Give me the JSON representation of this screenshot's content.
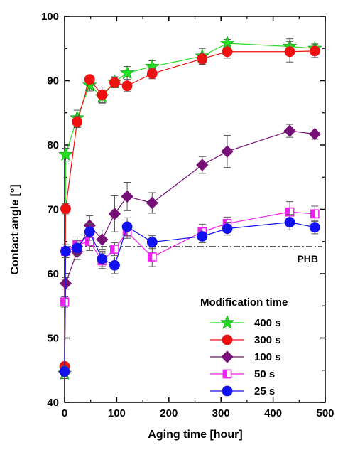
{
  "chart_data": {
    "type": "scatter",
    "xlabel": "Aging time [hour]",
    "ylabel": "Contact angle [°]",
    "xlim": [
      0,
      500
    ],
    "ylim": [
      40,
      100
    ],
    "xticks": [
      0,
      100,
      200,
      300,
      400,
      500
    ],
    "yticks": [
      40,
      50,
      60,
      70,
      80,
      90,
      100
    ],
    "x_tick_labels": [
      "0",
      "100",
      "200",
      "300",
      "400",
      "500"
    ],
    "y_tick_labels": [
      "40",
      "50",
      "60",
      "70",
      "80",
      "90",
      "100"
    ],
    "grid": false,
    "legend_position": "bottom-right",
    "legend_title": "Modification time",
    "reference_line": {
      "label": "PHB",
      "y": 64.2,
      "style": "dash-dot"
    },
    "series": [
      {
        "name": "400 s",
        "color": "#22dd22",
        "marker": "star",
        "points": [
          [
            0,
            44.5
          ],
          [
            2,
            78.5
          ],
          [
            24,
            84.2
          ],
          [
            48,
            89.3
          ],
          [
            72,
            87.5
          ],
          [
            96,
            89.8
          ],
          [
            120,
            91.2
          ],
          [
            168,
            92.2
          ],
          [
            264,
            93.8
          ],
          [
            312,
            95.8
          ],
          [
            432,
            95.3
          ],
          [
            480,
            95.0
          ]
        ],
        "errors": [
          0.8,
          1.0,
          1.2,
          0.9,
          1.0,
          0.8,
          1.0,
          0.9,
          1.2,
          0.6,
          1.2,
          0.8
        ]
      },
      {
        "name": "300 s",
        "color": "#ee1111",
        "marker": "circle",
        "points": [
          [
            0,
            45.6
          ],
          [
            2,
            70.1
          ],
          [
            24,
            83.6
          ],
          [
            48,
            90.2
          ],
          [
            72,
            87.8
          ],
          [
            96,
            89.7
          ],
          [
            120,
            89.2
          ],
          [
            168,
            91.1
          ],
          [
            264,
            93.4
          ],
          [
            312,
            94.5
          ],
          [
            432,
            94.5
          ],
          [
            480,
            94.6
          ]
        ],
        "errors": [
          0.6,
          0.8,
          0.9,
          0.6,
          1.2,
          0.8,
          0.9,
          0.8,
          0.9,
          1.0,
          1.6,
          1.0
        ]
      },
      {
        "name": "100 s",
        "color": "#771177",
        "marker": "diamond",
        "points": [
          [
            0,
            44.8
          ],
          [
            2,
            58.5
          ],
          [
            24,
            63.4
          ],
          [
            48,
            67.5
          ],
          [
            72,
            65.3
          ],
          [
            96,
            69.3
          ],
          [
            120,
            72.0
          ],
          [
            168,
            71.0
          ],
          [
            264,
            76.9
          ],
          [
            312,
            79.0
          ],
          [
            432,
            82.2
          ],
          [
            480,
            81.7
          ]
        ],
        "errors": [
          0.8,
          0.9,
          1.2,
          1.5,
          1.5,
          2.8,
          2.2,
          1.6,
          1.3,
          2.5,
          1.0,
          0.8
        ]
      },
      {
        "name": "50 s",
        "color": "#ee22ee",
        "marker": "square-open",
        "points": [
          [
            0,
            55.6
          ],
          [
            2,
            63.5
          ],
          [
            24,
            64.5
          ],
          [
            48,
            65.0
          ],
          [
            72,
            62.0
          ],
          [
            96,
            63.8
          ],
          [
            120,
            66.5
          ],
          [
            168,
            62.6
          ],
          [
            264,
            66.5
          ],
          [
            312,
            67.8
          ],
          [
            432,
            69.6
          ],
          [
            480,
            69.3
          ]
        ],
        "errors": [
          0.8,
          1.0,
          1.2,
          1.4,
          1.2,
          1.0,
          1.0,
          1.5,
          1.2,
          1.0,
          1.6,
          1.2
        ]
      },
      {
        "name": "25 s",
        "color": "#1111ee",
        "marker": "circle",
        "points": [
          [
            0,
            44.8
          ],
          [
            2,
            63.5
          ],
          [
            24,
            64.0
          ],
          [
            48,
            66.5
          ],
          [
            72,
            62.3
          ],
          [
            96,
            61.3
          ],
          [
            120,
            67.3
          ],
          [
            168,
            64.9
          ],
          [
            264,
            65.8
          ],
          [
            312,
            67.0
          ],
          [
            432,
            68.0
          ],
          [
            480,
            67.2
          ]
        ],
        "errors": [
          0.8,
          1.0,
          1.2,
          1.3,
          1.2,
          1.3,
          1.4,
          1.0,
          1.0,
          1.0,
          1.2,
          1.0
        ]
      }
    ]
  }
}
